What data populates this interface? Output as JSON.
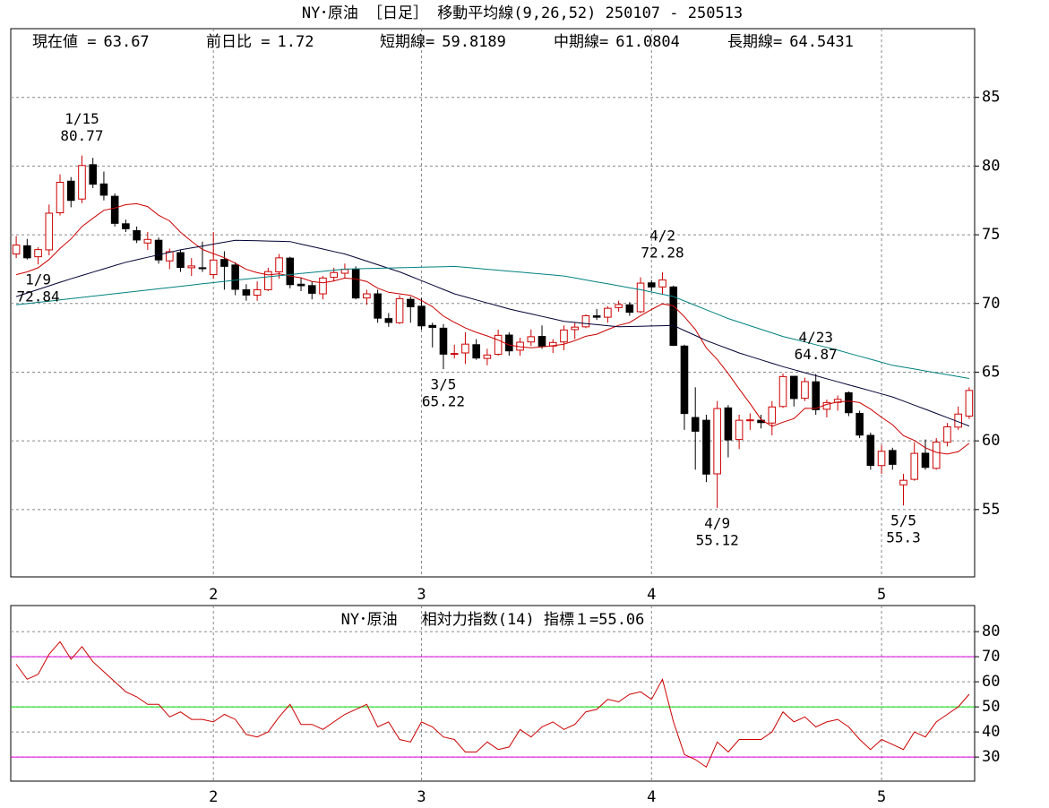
{
  "chart_data": [
    {
      "type": "candlestick",
      "title": "NY･原油 ［日足］ 移動平均線(9,26,52)  250107 - 250513",
      "info": [
        {
          "label": "現在値 =",
          "value": 63.67
        },
        {
          "label": "前日比 =",
          "value": 1.72
        },
        {
          "label": "短期線=",
          "value": 59.8189
        },
        {
          "label": "中期線=",
          "value": 61.0804
        },
        {
          "label": "長期線=",
          "value": 64.5431
        }
      ],
      "categories": [
        null,
        null,
        null,
        null,
        null,
        null,
        null,
        null,
        null,
        null,
        null,
        null,
        null,
        null,
        null,
        null,
        null,
        null,
        "2",
        null,
        null,
        null,
        null,
        null,
        null,
        null,
        null,
        null,
        null,
        null,
        null,
        null,
        null,
        null,
        null,
        null,
        null,
        "3",
        null,
        null,
        null,
        null,
        null,
        null,
        null,
        null,
        null,
        null,
        null,
        null,
        null,
        null,
        null,
        null,
        null,
        null,
        null,
        null,
        "4",
        null,
        null,
        null,
        null,
        null,
        null,
        null,
        null,
        null,
        null,
        null,
        null,
        null,
        null,
        null,
        null,
        null,
        null,
        null,
        null,
        "5",
        null,
        null,
        null,
        null,
        null,
        null,
        null,
        null
      ],
      "open": [
        73.6,
        74.2,
        73.4,
        73.9,
        76.6,
        78.9,
        77.6,
        80.1,
        78.7,
        77.8,
        75.8,
        75.3,
        74.4,
        74.6,
        73.1,
        73.7,
        72.6,
        72.6,
        72.1,
        73.2,
        72.8,
        71.0,
        70.6,
        71.0,
        72.3,
        73.3,
        71.4,
        71.3,
        70.7,
        71.9,
        72.2,
        72.5,
        70.4,
        70.7,
        68.9,
        68.6,
        70.3,
        69.8,
        68.4,
        68.2,
        66.3,
        66.4,
        67.0,
        66.0,
        66.3,
        67.7,
        66.6,
        67.2,
        67.6,
        66.9,
        67.2,
        68.1,
        68.3,
        69.1,
        69.0,
        69.7,
        69.9,
        69.4,
        71.5,
        71.2,
        71.2,
        66.9,
        61.7,
        61.5,
        57.6,
        62.4,
        60.1,
        61.5,
        61.5,
        61.3,
        62.5,
        64.7,
        63.1,
        64.3,
        62.3,
        62.8,
        63.5,
        62.0,
        60.4,
        58.2,
        59.3,
        56.8,
        57.2,
        59.1,
        58.0,
        59.9,
        61.0,
        61.8
      ],
      "high": [
        74.9,
        74.7,
        74.1,
        77.2,
        79.4,
        79.2,
        80.77,
        80.6,
        79.6,
        78.0,
        76.1,
        75.6,
        75.2,
        74.8,
        74.0,
        73.9,
        73.3,
        74.5,
        75.2,
        73.8,
        73.0,
        71.4,
        71.6,
        72.6,
        73.6,
        73.4,
        71.9,
        71.6,
        72.0,
        72.6,
        72.9,
        72.7,
        71.0,
        71.0,
        69.3,
        70.6,
        70.5,
        70.4,
        68.6,
        68.5,
        67.0,
        67.9,
        67.4,
        66.7,
        68.1,
        67.9,
        67.5,
        68.1,
        68.4,
        67.4,
        68.4,
        68.6,
        69.2,
        69.6,
        69.8,
        70.2,
        70.1,
        71.9,
        71.7,
        72.28,
        71.3,
        67.0,
        63.9,
        61.9,
        62.9,
        62.6,
        61.9,
        62.0,
        61.9,
        62.9,
        64.9,
        64.7,
        64.6,
        64.87,
        63.0,
        63.3,
        63.6,
        62.2,
        60.6,
        59.7,
        59.5,
        57.6,
        59.9,
        60.1,
        60.2,
        61.3,
        62.5,
        63.9
      ],
      "low": [
        73.3,
        73.2,
        72.84,
        73.5,
        76.4,
        77.0,
        77.3,
        78.4,
        77.5,
        75.6,
        75.2,
        74.4,
        73.9,
        72.9,
        72.5,
        72.3,
        72.0,
        72.3,
        71.8,
        71.0,
        70.6,
        70.2,
        70.2,
        70.9,
        71.8,
        71.1,
        70.9,
        70.3,
        70.3,
        71.6,
        71.8,
        70.3,
        69.9,
        68.6,
        68.3,
        68.5,
        68.6,
        68.1,
        66.8,
        65.22,
        66.0,
        65.6,
        65.9,
        65.5,
        66.2,
        66.2,
        66.2,
        66.9,
        66.7,
        66.4,
        66.6,
        67.4,
        68.2,
        68.8,
        68.6,
        69.4,
        69.1,
        69.3,
        70.9,
        70.7,
        66.9,
        60.8,
        57.9,
        57.0,
        55.12,
        58.8,
        59.4,
        60.8,
        60.9,
        60.4,
        62.4,
        62.5,
        62.9,
        61.9,
        61.7,
        62.2,
        61.8,
        60.2,
        57.9,
        57.6,
        57.9,
        55.3,
        57.1,
        57.9,
        57.9,
        59.6,
        60.8,
        61.6
      ],
      "close": [
        74.25,
        73.32,
        73.92,
        76.57,
        78.82,
        77.5,
        80.04,
        78.68,
        77.88,
        75.83,
        75.44,
        74.62,
        74.66,
        73.17,
        73.77,
        72.62,
        72.73,
        72.53,
        73.16,
        72.7,
        71.03,
        70.61,
        71.0,
        72.32,
        73.32,
        71.37,
        71.29,
        70.74,
        71.85,
        72.25,
        72.48,
        70.4,
        70.7,
        68.93,
        68.62,
        70.35,
        69.76,
        68.37,
        68.26,
        66.31,
        66.36,
        67.04,
        66.03,
        66.25,
        67.68,
        66.55,
        67.18,
        67.58,
        66.9,
        67.16,
        68.07,
        68.28,
        69.11,
        69.0,
        69.65,
        69.92,
        69.36,
        71.48,
        71.2,
        71.71,
        66.95,
        61.99,
        60.7,
        57.58,
        62.35,
        60.07,
        61.5,
        61.53,
        61.33,
        62.47,
        64.68,
        63.08,
        64.31,
        62.27,
        62.79,
        63.02,
        62.05,
        60.42,
        58.21,
        59.24,
        58.29,
        57.13,
        59.09,
        58.07,
        59.91,
        61.02,
        61.95,
        63.67
      ],
      "up_color": "#cc0000",
      "down_color": "#000000",
      "series": [
        {
          "color": "#cc0000",
          "values": [
            72.1,
            72.3,
            72.6,
            73.2,
            74.0,
            74.7,
            75.6,
            76.2,
            76.78,
            76.95,
            77.19,
            77.26,
            77.05,
            76.42,
            76.01,
            75.19,
            74.52,
            73.93,
            73.63,
            73.33,
            72.93,
            72.48,
            72.24,
            72.08,
            72.16,
            72.0,
            71.87,
            71.6,
            71.5,
            71.64,
            71.85,
            71.78,
            71.6,
            71.11,
            70.81,
            70.7,
            70.59,
            70.21,
            69.76,
            69.08,
            68.63,
            68.22,
            67.9,
            67.64,
            67.34,
            66.98,
            66.85,
            66.78,
            66.84,
            66.93,
            67.04,
            67.29,
            67.61,
            67.76,
            68.1,
            68.41,
            68.61,
            69.11,
            69.56,
            69.97,
            69.82,
            69.03,
            68.11,
            66.77,
            65.92,
            64.89,
            63.78,
            62.71,
            61.56,
            61.06,
            61.36,
            61.62,
            62.37,
            62.36,
            62.66,
            62.83,
            62.89,
            62.79,
            62.31,
            61.71,
            61.18,
            60.38,
            60.03,
            59.5,
            59.16,
            59.04,
            59.21,
            59.82
          ]
        },
        {
          "color": "#000033",
          "values": [
            70.5,
            70.76,
            71.02,
            71.28,
            71.54,
            71.8,
            72.04,
            72.28,
            72.52,
            72.76,
            73.0,
            73.18,
            73.36,
            73.54,
            73.72,
            73.9,
            74.04,
            74.18,
            74.32,
            74.46,
            74.6,
            74.58,
            74.56,
            74.54,
            74.52,
            74.5,
            74.32,
            74.14,
            73.96,
            73.78,
            73.6,
            73.34,
            73.08,
            72.82,
            72.56,
            72.3,
            71.98,
            71.66,
            71.34,
            71.02,
            70.7,
            70.48,
            70.26,
            70.04,
            69.82,
            69.6,
            69.42,
            69.24,
            69.06,
            68.88,
            68.7,
            68.62,
            68.54,
            68.46,
            68.38,
            68.3,
            68.32,
            68.34,
            68.36,
            68.38,
            68.4,
            68.03,
            67.67,
            67.3,
            67.0,
            66.7,
            66.4,
            66.15,
            65.9,
            65.65,
            65.4,
            65.18,
            64.96,
            64.74,
            64.52,
            64.3,
            64.08,
            63.86,
            63.64,
            63.42,
            63.2,
            62.9,
            62.6,
            62.3,
            62.0,
            61.69,
            61.39,
            61.08
          ]
        },
        {
          "color": "#008080",
          "values": [
            69.9,
            69.99,
            70.08,
            70.17,
            70.26,
            70.35,
            70.44,
            70.53,
            70.62,
            70.71,
            70.8,
            70.89,
            70.98,
            71.07,
            71.16,
            71.25,
            71.34,
            71.43,
            71.52,
            71.61,
            71.7,
            71.78,
            71.86,
            71.94,
            72.02,
            72.1,
            72.18,
            72.26,
            72.34,
            72.42,
            72.5,
            72.52,
            72.54,
            72.56,
            72.58,
            72.6,
            72.62,
            72.64,
            72.66,
            72.68,
            72.7,
            72.63,
            72.56,
            72.49,
            72.42,
            72.35,
            72.28,
            72.21,
            72.14,
            72.07,
            72.0,
            71.86,
            71.71,
            71.57,
            71.43,
            71.29,
            71.14,
            71.0,
            70.83,
            70.67,
            70.5,
            70.18,
            69.86,
            69.54,
            69.22,
            68.9,
            68.64,
            68.38,
            68.12,
            67.86,
            67.6,
            67.4,
            67.2,
            67.0,
            66.8,
            66.6,
            66.38,
            66.16,
            65.94,
            65.72,
            65.5,
            65.36,
            65.23,
            65.09,
            64.95,
            64.82,
            64.68,
            64.54
          ]
        }
      ],
      "ylim": [
        50.1,
        90
      ],
      "yticks": [
        55,
        60,
        65,
        70,
        75,
        80,
        85
      ],
      "grid": true,
      "annotations": [
        {
          "text": "1/9",
          "value": 72.84
        },
        {
          "text": "1/15",
          "value": 80.77
        },
        {
          "text": "3/5",
          "value": 65.22
        },
        {
          "text": "4/2",
          "value": 72.28
        },
        {
          "text": "4/9",
          "value": 55.12
        },
        {
          "text": "4/23",
          "value": 64.87
        },
        {
          "text": "5/5",
          "value": 55.3
        }
      ]
    },
    {
      "type": "line",
      "title": "NY･原油　 相対力指数(14) 指標１=",
      "title_value": 55.06,
      "categories": [
        null,
        null,
        null,
        null,
        null,
        null,
        null,
        null,
        null,
        null,
        null,
        null,
        null,
        null,
        null,
        null,
        null,
        null,
        "2",
        null,
        null,
        null,
        null,
        null,
        null,
        null,
        null,
        null,
        null,
        null,
        null,
        null,
        null,
        null,
        null,
        null,
        null,
        "3",
        null,
        null,
        null,
        null,
        null,
        null,
        null,
        null,
        null,
        null,
        null,
        null,
        null,
        null,
        null,
        null,
        null,
        null,
        null,
        null,
        "4",
        null,
        null,
        null,
        null,
        null,
        null,
        null,
        null,
        null,
        null,
        null,
        null,
        null,
        null,
        null,
        null,
        null,
        null,
        null,
        null,
        "5",
        null,
        null,
        null,
        null,
        null,
        null,
        null,
        null
      ],
      "series": [
        {
          "color": "#cc0000",
          "values": [
            67,
            61,
            63,
            71,
            76,
            69,
            74,
            68,
            64,
            60,
            56,
            54,
            51,
            51,
            46,
            48,
            45,
            45,
            44,
            47,
            45,
            39,
            38,
            40,
            46,
            51,
            43,
            43,
            41,
            44,
            47,
            49,
            51,
            42,
            44,
            37,
            36,
            44,
            42,
            38,
            37,
            32,
            32,
            36,
            33,
            34,
            41,
            38,
            42,
            44,
            41,
            43,
            48,
            49,
            53,
            52,
            55,
            56,
            53,
            61,
            44,
            31,
            29,
            26,
            36,
            32,
            37,
            37,
            37,
            40,
            48,
            44,
            46,
            42,
            44,
            45,
            42,
            37,
            33,
            37,
            35,
            33,
            40,
            38,
            44,
            47,
            50,
            55.06
          ]
        }
      ],
      "ylim": [
        20.4,
        90.4
      ],
      "yticks": [
        30,
        40,
        50,
        60,
        70,
        80
      ],
      "grid": true,
      "reference_lines": [
        {
          "value": 70,
          "color": "#e000e0"
        },
        {
          "value": 50,
          "color": "#00dd00"
        },
        {
          "value": 30,
          "color": "#e000e0"
        }
      ]
    }
  ]
}
